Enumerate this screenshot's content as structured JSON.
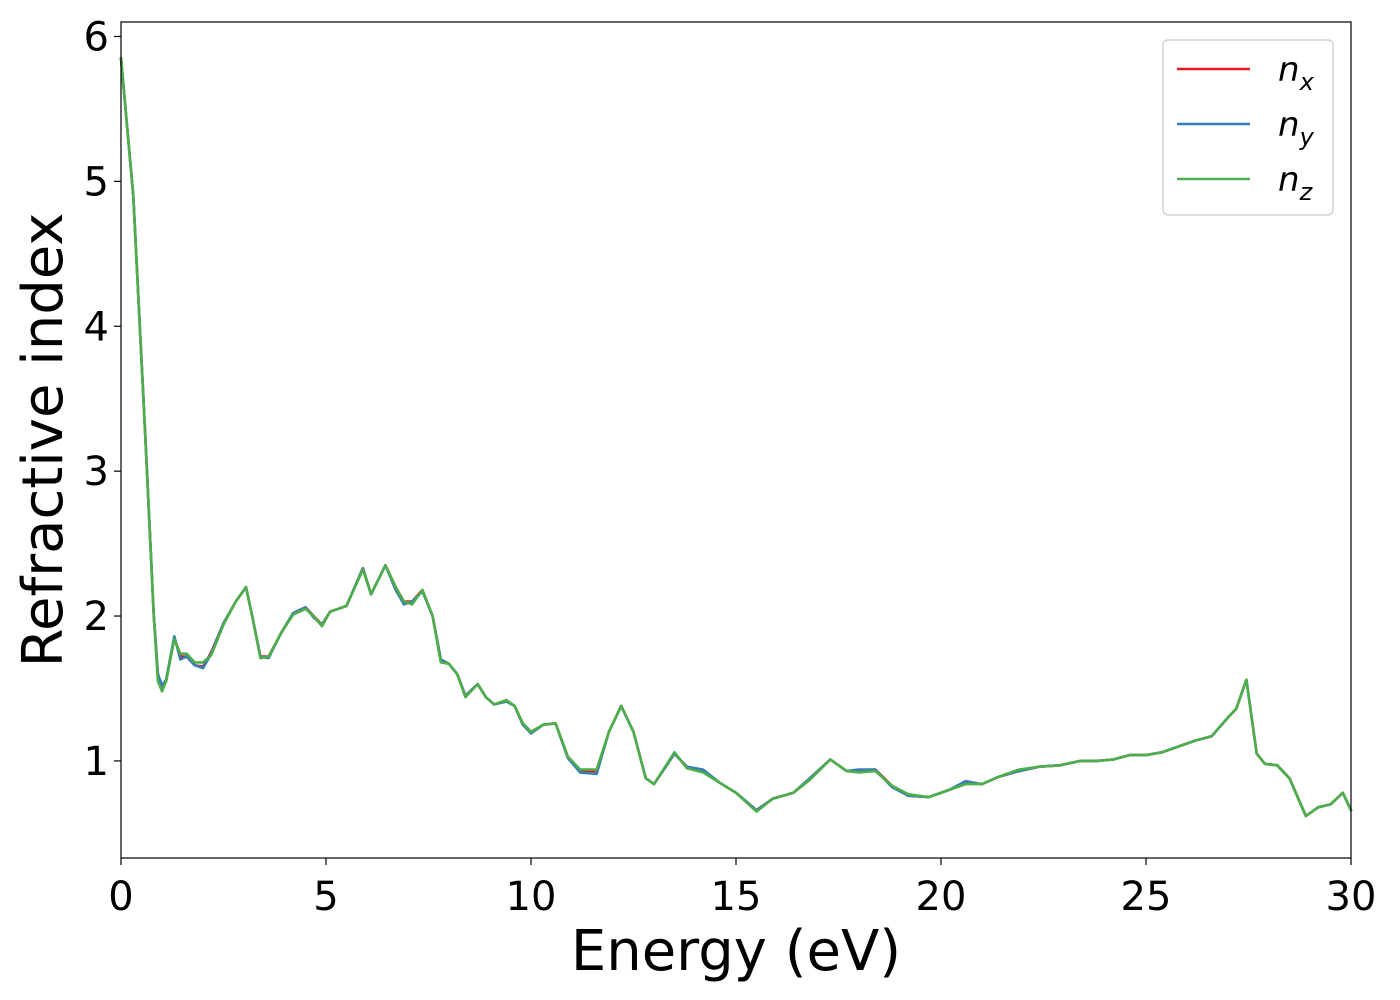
{
  "chart_data": {
    "type": "line",
    "title": "",
    "xlabel": "Energy (eV)",
    "ylabel": "Refractive index",
    "xlim": [
      0,
      30
    ],
    "ylim": [
      0.33,
      6.1
    ],
    "xticks": [
      0,
      5,
      10,
      15,
      20,
      25,
      30
    ],
    "yticks": [
      1,
      2,
      3,
      4,
      5,
      6
    ],
    "grid": false,
    "legend_position": "top-right",
    "series": [
      {
        "name": "n_x",
        "label_base": "n",
        "label_sub": "x",
        "color": "#e41a1c",
        "x": [
          0,
          0.3,
          0.6,
          0.8,
          0.9,
          1.0,
          1.1,
          1.3,
          1.45,
          1.6,
          1.8,
          2.0,
          2.2,
          2.5,
          2.8,
          3.05,
          3.2,
          3.4,
          3.6,
          3.9,
          4.2,
          4.5,
          4.7,
          4.9,
          5.1,
          5.3,
          5.5,
          5.9,
          6.1,
          6.45,
          6.7,
          6.9,
          7.1,
          7.35,
          7.6,
          7.8,
          8.0,
          8.2,
          8.4,
          8.7,
          8.9,
          9.1,
          9.4,
          9.6,
          9.8,
          10.0,
          10.3,
          10.6,
          10.9,
          11.2,
          11.6,
          11.9,
          12.2,
          12.5,
          12.8,
          13.0,
          13.5,
          13.8,
          14.2,
          14.6,
          15.0,
          15.5,
          15.9,
          16.4,
          16.8,
          17.3,
          17.7,
          18.0,
          18.4,
          18.8,
          19.2,
          19.7,
          20.2,
          20.6,
          21.0,
          21.4,
          21.9,
          22.4,
          22.9,
          23.4,
          23.8,
          24.2,
          24.6,
          25.0,
          25.4,
          25.8,
          26.2,
          26.6,
          27.0,
          27.2,
          27.45,
          27.7,
          27.9,
          28.2,
          28.5,
          28.9,
          29.2,
          29.5,
          29.8,
          30.0
        ],
        "y": [
          5.85,
          4.9,
          3.2,
          2.0,
          1.6,
          1.5,
          1.55,
          1.85,
          1.72,
          1.72,
          1.66,
          1.65,
          1.75,
          1.95,
          2.1,
          2.2,
          2.0,
          1.72,
          1.72,
          1.88,
          2.02,
          2.06,
          2.0,
          1.94,
          2.03,
          2.05,
          2.07,
          2.33,
          2.15,
          2.35,
          2.2,
          2.1,
          2.1,
          2.18,
          2.0,
          1.7,
          1.67,
          1.6,
          1.45,
          1.53,
          1.44,
          1.39,
          1.41,
          1.38,
          1.26,
          1.2,
          1.25,
          1.26,
          1.02,
          0.93,
          0.93,
          1.2,
          1.38,
          1.2,
          0.88,
          0.84,
          1.05,
          0.96,
          0.93,
          0.85,
          0.78,
          0.66,
          0.74,
          0.78,
          0.88,
          1.01,
          0.93,
          0.93,
          0.94,
          0.83,
          0.76,
          0.75,
          0.8,
          0.85,
          0.84,
          0.89,
          0.93,
          0.96,
          0.97,
          1.0,
          1.0,
          1.01,
          1.04,
          1.04,
          1.06,
          1.1,
          1.14,
          1.17,
          1.3,
          1.36,
          1.56,
          1.05,
          0.98,
          0.97,
          0.88,
          0.62,
          0.68,
          0.7,
          0.78,
          0.66
        ]
      },
      {
        "name": "n_y",
        "label_base": "n",
        "label_sub": "y",
        "color": "#377eb8",
        "x": [
          0,
          0.3,
          0.6,
          0.8,
          0.9,
          1.0,
          1.1,
          1.3,
          1.45,
          1.6,
          1.8,
          2.0,
          2.2,
          2.5,
          2.8,
          3.05,
          3.2,
          3.4,
          3.6,
          3.9,
          4.2,
          4.5,
          4.7,
          4.9,
          5.1,
          5.3,
          5.5,
          5.9,
          6.1,
          6.45,
          6.7,
          6.9,
          7.1,
          7.35,
          7.6,
          7.8,
          8.0,
          8.2,
          8.4,
          8.7,
          8.9,
          9.1,
          9.4,
          9.6,
          9.8,
          10.0,
          10.3,
          10.6,
          10.9,
          11.2,
          11.6,
          11.9,
          12.2,
          12.5,
          12.8,
          13.0,
          13.5,
          13.8,
          14.2,
          14.6,
          15.0,
          15.5,
          15.9,
          16.4,
          16.8,
          17.3,
          17.7,
          18.0,
          18.4,
          18.8,
          19.2,
          19.7,
          20.2,
          20.6,
          21.0,
          21.4,
          21.9,
          22.4,
          22.9,
          23.4,
          23.8,
          24.2,
          24.6,
          25.0,
          25.4,
          25.8,
          26.2,
          26.6,
          27.0,
          27.2,
          27.45,
          27.7,
          27.9,
          28.2,
          28.5,
          28.9,
          29.2,
          29.5,
          29.8,
          30.0
        ],
        "y": [
          5.85,
          4.9,
          3.2,
          2.0,
          1.6,
          1.52,
          1.56,
          1.86,
          1.7,
          1.72,
          1.66,
          1.64,
          1.74,
          1.95,
          2.1,
          2.2,
          2.0,
          1.72,
          1.71,
          1.88,
          2.02,
          2.06,
          1.99,
          1.94,
          2.03,
          2.05,
          2.07,
          2.33,
          2.15,
          2.35,
          2.18,
          2.08,
          2.1,
          2.17,
          2.0,
          1.7,
          1.67,
          1.6,
          1.45,
          1.53,
          1.44,
          1.39,
          1.41,
          1.38,
          1.25,
          1.19,
          1.25,
          1.26,
          1.02,
          0.92,
          0.91,
          1.2,
          1.38,
          1.2,
          0.88,
          0.84,
          1.05,
          0.96,
          0.94,
          0.85,
          0.78,
          0.66,
          0.74,
          0.78,
          0.88,
          1.01,
          0.93,
          0.94,
          0.94,
          0.82,
          0.76,
          0.75,
          0.8,
          0.86,
          0.84,
          0.89,
          0.93,
          0.96,
          0.97,
          1.0,
          1.0,
          1.01,
          1.04,
          1.04,
          1.06,
          1.1,
          1.14,
          1.17,
          1.3,
          1.36,
          1.56,
          1.05,
          0.98,
          0.97,
          0.88,
          0.62,
          0.68,
          0.7,
          0.78,
          0.66
        ]
      },
      {
        "name": "n_z",
        "label_base": "n",
        "label_sub": "z",
        "color": "#4daf4a",
        "x": [
          0,
          0.3,
          0.6,
          0.8,
          0.9,
          1.0,
          1.1,
          1.3,
          1.45,
          1.6,
          1.8,
          2.0,
          2.2,
          2.5,
          2.8,
          3.05,
          3.2,
          3.4,
          3.6,
          3.9,
          4.2,
          4.5,
          4.7,
          4.9,
          5.1,
          5.3,
          5.5,
          5.9,
          6.1,
          6.45,
          6.7,
          6.9,
          7.1,
          7.35,
          7.6,
          7.8,
          8.0,
          8.2,
          8.4,
          8.7,
          8.9,
          9.1,
          9.4,
          9.6,
          9.8,
          10.0,
          10.3,
          10.6,
          10.9,
          11.2,
          11.6,
          11.9,
          12.2,
          12.5,
          12.8,
          13.0,
          13.5,
          13.8,
          14.2,
          14.6,
          15.0,
          15.5,
          15.9,
          16.4,
          16.8,
          17.3,
          17.7,
          18.0,
          18.4,
          18.8,
          19.2,
          19.7,
          20.2,
          20.6,
          21.0,
          21.4,
          21.9,
          22.4,
          22.9,
          23.4,
          23.8,
          24.2,
          24.6,
          25.0,
          25.4,
          25.8,
          26.2,
          26.6,
          27.0,
          27.2,
          27.45,
          27.7,
          27.9,
          28.2,
          28.5,
          28.9,
          29.2,
          29.5,
          29.8,
          30.0
        ],
        "y": [
          5.85,
          4.9,
          3.2,
          2.0,
          1.55,
          1.48,
          1.55,
          1.84,
          1.74,
          1.74,
          1.68,
          1.68,
          1.73,
          1.94,
          2.1,
          2.2,
          2.0,
          1.71,
          1.72,
          1.88,
          2.01,
          2.05,
          2.0,
          1.93,
          2.03,
          2.05,
          2.07,
          2.32,
          2.15,
          2.35,
          2.2,
          2.1,
          2.08,
          2.18,
          2.0,
          1.68,
          1.67,
          1.6,
          1.44,
          1.53,
          1.44,
          1.39,
          1.42,
          1.38,
          1.26,
          1.2,
          1.25,
          1.26,
          1.03,
          0.94,
          0.94,
          1.2,
          1.38,
          1.2,
          0.88,
          0.84,
          1.06,
          0.95,
          0.92,
          0.85,
          0.78,
          0.65,
          0.74,
          0.78,
          0.87,
          1.01,
          0.93,
          0.92,
          0.93,
          0.83,
          0.77,
          0.75,
          0.8,
          0.84,
          0.84,
          0.89,
          0.94,
          0.96,
          0.97,
          1.0,
          1.0,
          1.01,
          1.04,
          1.04,
          1.06,
          1.1,
          1.14,
          1.17,
          1.3,
          1.36,
          1.56,
          1.05,
          0.98,
          0.97,
          0.88,
          0.62,
          0.68,
          0.7,
          0.78,
          0.66
        ]
      }
    ]
  }
}
